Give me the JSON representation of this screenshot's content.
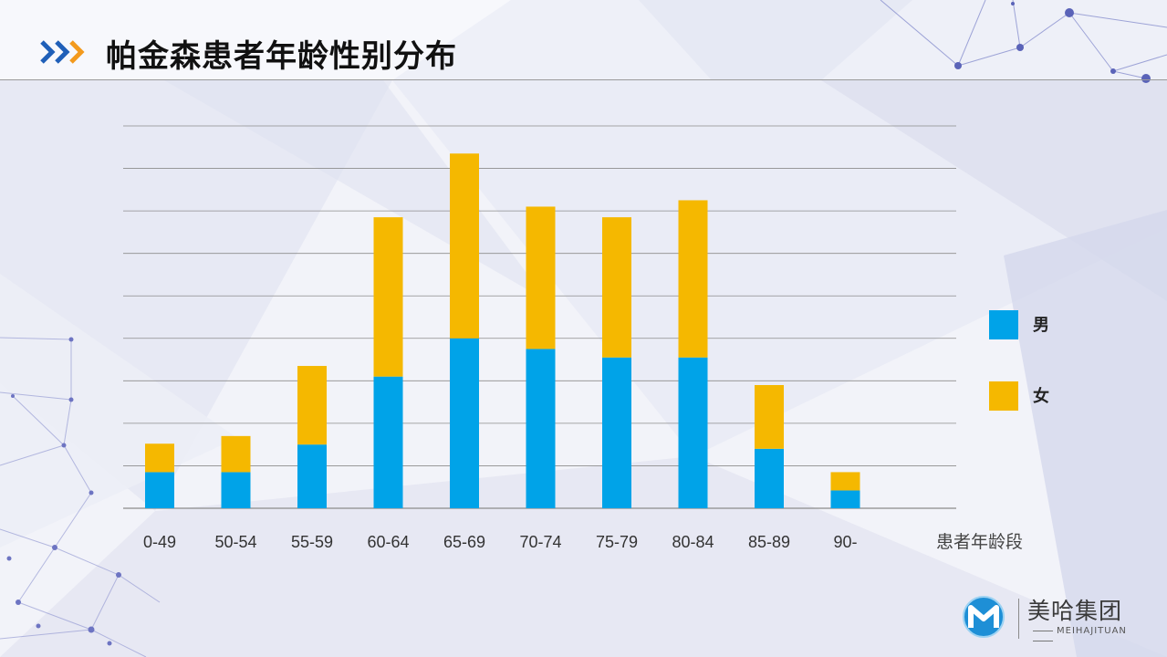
{
  "header": {
    "title": "帕金森患者年龄性别分布"
  },
  "colors": {
    "male": "#00a3e8",
    "female": "#f5b800",
    "arrow_blue": "#1f5fb8",
    "arrow_orange": "#f39a1d",
    "grid": "#8c8c8c"
  },
  "chart_data": {
    "type": "bar",
    "stacked": true,
    "title": "帕金森患者年龄性别分布",
    "xlabel": "患者年龄段",
    "ylabel": "",
    "categories": [
      "0-49",
      "50-54",
      "55-59",
      "60-64",
      "65-69",
      "70-74",
      "75-79",
      "80-84",
      "85-89",
      "90-"
    ],
    "series": [
      {
        "name": "男",
        "values": [
          0.85,
          0.85,
          1.5,
          3.1,
          4.0,
          3.75,
          3.55,
          3.55,
          1.4,
          0.42
        ]
      },
      {
        "name": "女",
        "values": [
          0.67,
          0.85,
          1.85,
          3.75,
          4.35,
          3.35,
          3.3,
          3.7,
          1.5,
          0.43
        ]
      }
    ],
    "ylim": [
      0,
      9
    ],
    "grid": true,
    "legend_position": "right"
  },
  "legend": {
    "items": [
      {
        "label": "男"
      },
      {
        "label": "女"
      }
    ]
  },
  "logo": {
    "name": "美哈集团",
    "subtitle": "MEIHAJITUAN"
  }
}
